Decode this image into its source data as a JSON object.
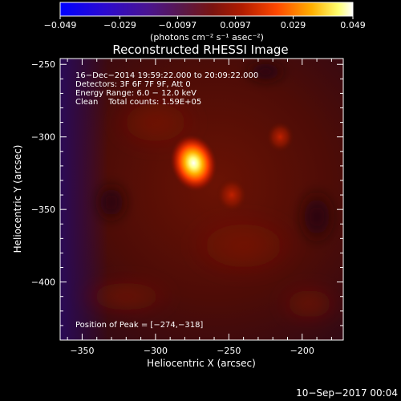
{
  "colors": {
    "background": "#000000",
    "foreground": "#ffffff",
    "colormap": [
      "#0000ff",
      "#3b0a88",
      "#6b1a8a",
      "#8b1f3a",
      "#b01a0a",
      "#ff4000",
      "#ffaa00",
      "#ffff80",
      "#ffffff"
    ]
  },
  "colorbar": {
    "tick_labels": [
      "−0.049",
      "−0.029",
      "−0.0097",
      "0.0097",
      "0.029",
      "0.049"
    ],
    "min": -0.049,
    "max": 0.049,
    "units": "(photons cm⁻² s⁻¹ asec⁻²)"
  },
  "chart_data": {
    "type": "heatmap",
    "title": "Reconstructed RHESSI Image",
    "xlabel": "Heliocentric X (arcsec)",
    "ylabel": "Heliocentric Y (arcsec)",
    "xlim": [
      -365,
      -172
    ],
    "ylim": [
      -440,
      -246
    ],
    "xticks": [
      -350,
      -300,
      -250,
      -200
    ],
    "yticks": [
      -250,
      -300,
      -350,
      -400
    ],
    "xtick_labels": [
      "−350",
      "−300",
      "−250",
      "−200"
    ],
    "ytick_labels": [
      "−250",
      "−300",
      "−350",
      "−400"
    ],
    "sources": [
      {
        "x": -274,
        "y": -318,
        "intensity": 1.0,
        "label": "peak"
      },
      {
        "x": -248,
        "y": -340,
        "intensity": 0.45
      },
      {
        "x": -215,
        "y": -300,
        "intensity": 0.35
      }
    ],
    "annotations": [
      "16−Dec−2014 19:59:22.000 to 20:09:22.000",
      "Detectors: 3F 6F 7F 9F, Att 0",
      "Energy Range: 6.0 − 12.0 keV",
      "Clean    Total counts: 1.59E+05"
    ],
    "peak_label": "Position of Peak = [−274,−318]",
    "peak": {
      "x": -274,
      "y": -318
    }
  },
  "footer": {
    "timestamp": "10−Sep−2017 00:04"
  }
}
